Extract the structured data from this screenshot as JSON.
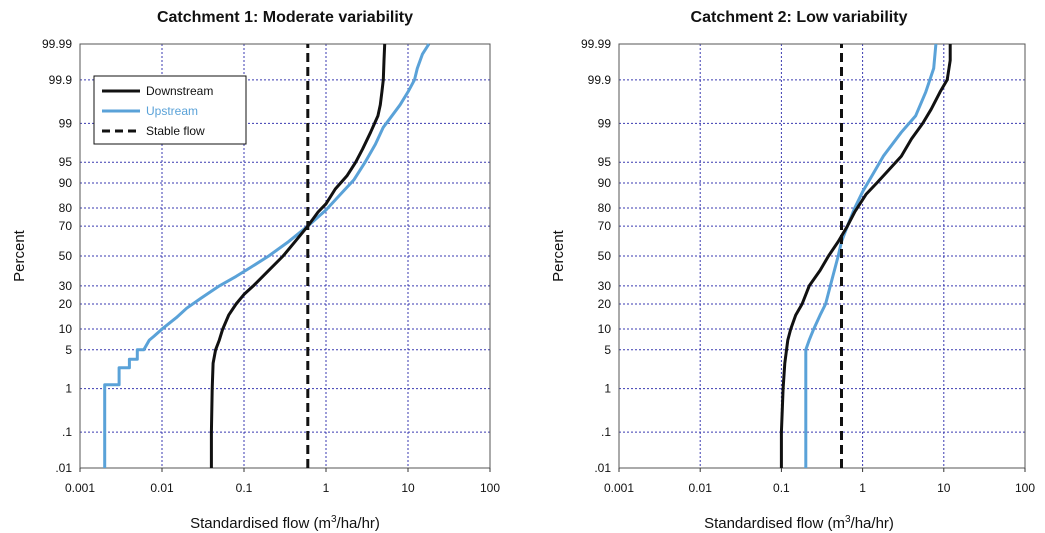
{
  "chart_data": [
    {
      "type": "line",
      "title": "Catchment 1: Moderate variability",
      "xlabel_main": "Standardised flow (m",
      "xlabel_sup": "3",
      "xlabel_tail": "/ha/hr)",
      "ylabel": "Percent",
      "x_scale": "log",
      "y_scale": "probability",
      "xlim": [
        0.001,
        100
      ],
      "ylim": [
        0.01,
        99.99
      ],
      "x_ticks": [
        0.001,
        0.01,
        0.1,
        1,
        10,
        100
      ],
      "x_tick_labels": [
        "0.001",
        "0.01",
        "0.1",
        "1",
        "10",
        "100"
      ],
      "y_ticks": [
        0.01,
        0.1,
        1,
        5,
        10,
        20,
        30,
        50,
        70,
        80,
        90,
        95,
        99,
        99.9,
        99.99
      ],
      "y_tick_labels": [
        ".01",
        ".1",
        "1",
        "5",
        "10",
        "20",
        "30",
        "50",
        "70",
        "80",
        "90",
        "95",
        "99",
        "99.9",
        "99.99"
      ],
      "grid": true,
      "legend": {
        "placement": "top-left",
        "entries": [
          {
            "label": "Downstream",
            "color": "#111111",
            "style": "solid"
          },
          {
            "label": "Upstream",
            "color": "#5aa2d8",
            "style": "solid"
          },
          {
            "label": "Stable flow",
            "color": "#111111",
            "style": "dashed"
          }
        ]
      },
      "series": [
        {
          "name": "Downstream",
          "color": "#111111",
          "style": "solid",
          "points": [
            [
              0.04,
              0.01
            ],
            [
              0.04,
              0.1
            ],
            [
              0.041,
              1
            ],
            [
              0.042,
              3
            ],
            [
              0.045,
              5
            ],
            [
              0.05,
              7
            ],
            [
              0.055,
              10
            ],
            [
              0.065,
              15
            ],
            [
              0.08,
              20
            ],
            [
              0.1,
              25
            ],
            [
              0.13,
              30
            ],
            [
              0.2,
              40
            ],
            [
              0.3,
              50
            ],
            [
              0.42,
              60
            ],
            [
              0.6,
              70
            ],
            [
              0.8,
              78
            ],
            [
              1.0,
              82
            ],
            [
              1.3,
              88
            ],
            [
              1.8,
              92
            ],
            [
              2.3,
              95
            ],
            [
              2.8,
              97
            ],
            [
              3.5,
              98.5
            ],
            [
              4.3,
              99.3
            ],
            [
              4.6,
              99.6
            ],
            [
              4.8,
              99.8
            ],
            [
              5,
              99.9
            ],
            [
              5.1,
              99.97
            ],
            [
              5.2,
              99.99
            ]
          ]
        },
        {
          "name": "Upstream",
          "color": "#5aa2d8",
          "style": "solid",
          "points": [
            [
              0.002,
              0.01
            ],
            [
              0.002,
              0.5
            ],
            [
              0.002,
              1.2
            ],
            [
              0.003,
              1.2
            ],
            [
              0.003,
              2.5
            ],
            [
              0.004,
              2.5
            ],
            [
              0.004,
              3.5
            ],
            [
              0.005,
              3.5
            ],
            [
              0.005,
              5
            ],
            [
              0.006,
              5
            ],
            [
              0.007,
              7
            ],
            [
              0.008,
              8
            ],
            [
              0.01,
              10
            ],
            [
              0.015,
              14
            ],
            [
              0.02,
              18
            ],
            [
              0.03,
              23
            ],
            [
              0.05,
              30
            ],
            [
              0.08,
              36
            ],
            [
              0.12,
              42
            ],
            [
              0.2,
              50
            ],
            [
              0.35,
              60
            ],
            [
              0.6,
              70
            ],
            [
              1.0,
              79
            ],
            [
              1.5,
              86
            ],
            [
              2.2,
              91
            ],
            [
              3,
              95
            ],
            [
              4,
              97.5
            ],
            [
              5,
              98.8
            ],
            [
              6,
              99.2
            ],
            [
              8,
              99.6
            ],
            [
              10,
              99.8
            ],
            [
              12,
              99.9
            ],
            [
              13,
              99.95
            ],
            [
              15,
              99.98
            ],
            [
              18,
              99.99
            ]
          ]
        },
        {
          "name": "Stable flow",
          "color": "#111111",
          "style": "dashed",
          "points": [
            [
              0.6,
              0.01
            ],
            [
              0.6,
              99.99
            ]
          ]
        }
      ]
    },
    {
      "type": "line",
      "title": "Catchment 2: Low variability",
      "xlabel_main": "Standardised flow (m",
      "xlabel_sup": "3",
      "xlabel_tail": "/ha/hr)",
      "ylabel": "Percent",
      "x_scale": "log",
      "y_scale": "probability",
      "xlim": [
        0.001,
        100
      ],
      "ylim": [
        0.01,
        99.99
      ],
      "x_ticks": [
        0.001,
        0.01,
        0.1,
        1,
        10,
        100
      ],
      "x_tick_labels": [
        "0.001",
        "0.01",
        "0.1",
        "1",
        "10",
        "100"
      ],
      "y_ticks": [
        0.01,
        0.1,
        1,
        5,
        10,
        20,
        30,
        50,
        70,
        80,
        90,
        95,
        99,
        99.9,
        99.99
      ],
      "y_tick_labels": [
        ".01",
        ".1",
        "1",
        "5",
        "10",
        "20",
        "30",
        "50",
        "70",
        "80",
        "90",
        "95",
        "99",
        "99.9",
        "99.99"
      ],
      "grid": true,
      "series": [
        {
          "name": "Downstream",
          "color": "#111111",
          "style": "solid",
          "points": [
            [
              0.1,
              0.01
            ],
            [
              0.1,
              0.1
            ],
            [
              0.105,
              1
            ],
            [
              0.11,
              3
            ],
            [
              0.12,
              7
            ],
            [
              0.13,
              10
            ],
            [
              0.15,
              15
            ],
            [
              0.18,
              20
            ],
            [
              0.22,
              30
            ],
            [
              0.3,
              40
            ],
            [
              0.38,
              50
            ],
            [
              0.5,
              60
            ],
            [
              0.65,
              70
            ],
            [
              0.8,
              78
            ],
            [
              1.1,
              86
            ],
            [
              1.5,
              90
            ],
            [
              2,
              93
            ],
            [
              3,
              96
            ],
            [
              4,
              98
            ],
            [
              5.5,
              99
            ],
            [
              7,
              99.5
            ],
            [
              9,
              99.8
            ],
            [
              11,
              99.9
            ],
            [
              12,
              99.97
            ],
            [
              12,
              99.99
            ]
          ]
        },
        {
          "name": "Upstream",
          "color": "#5aa2d8",
          "style": "solid",
          "points": [
            [
              0.2,
              0.01
            ],
            [
              0.2,
              0.1
            ],
            [
              0.2,
              1
            ],
            [
              0.2,
              5
            ],
            [
              0.22,
              7
            ],
            [
              0.25,
              10
            ],
            [
              0.3,
              15
            ],
            [
              0.35,
              20
            ],
            [
              0.4,
              30
            ],
            [
              0.45,
              40
            ],
            [
              0.5,
              50
            ],
            [
              0.55,
              60
            ],
            [
              0.65,
              70
            ],
            [
              0.8,
              80
            ],
            [
              1.0,
              87
            ],
            [
              1.3,
              92
            ],
            [
              1.8,
              96
            ],
            [
              3,
              98.5
            ],
            [
              4.5,
              99.3
            ],
            [
              6,
              99.8
            ],
            [
              7.5,
              99.95
            ],
            [
              8,
              99.99
            ]
          ]
        },
        {
          "name": "Stable flow",
          "color": "#111111",
          "style": "dashed",
          "points": [
            [
              0.55,
              0.01
            ],
            [
              0.55,
              99.99
            ]
          ]
        }
      ]
    }
  ]
}
